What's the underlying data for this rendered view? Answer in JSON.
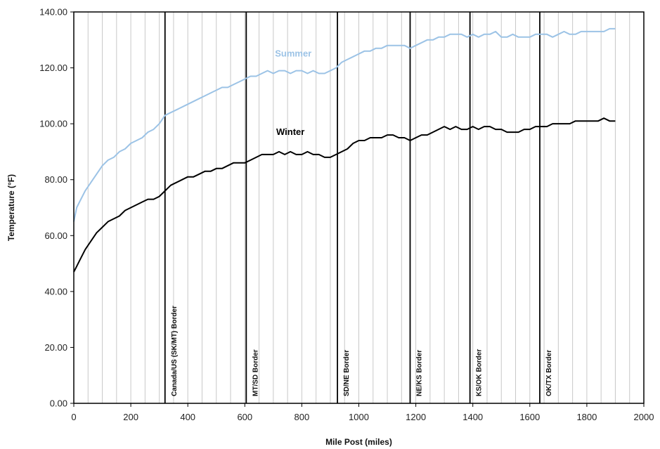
{
  "chart_data": {
    "type": "line",
    "title": "",
    "xlabel": "Mile Post (miles)",
    "ylabel": "Temperature (°F)",
    "xlim": [
      0,
      2000
    ],
    "ylim": [
      0,
      140
    ],
    "x_ticks": [
      "0",
      "200",
      "400",
      "600",
      "800",
      "1000",
      "1200",
      "1400",
      "1600",
      "1800",
      "2000"
    ],
    "y_ticks": [
      "0.00",
      "20.00",
      "40.00",
      "60.00",
      "80.00",
      "100.00",
      "120.00",
      "140.00"
    ],
    "grid": "vertical",
    "series": [
      {
        "name": "Summer",
        "color": "#9cc3e6",
        "x": [
          0,
          10,
          20,
          40,
          60,
          80,
          100,
          120,
          140,
          160,
          180,
          200,
          220,
          240,
          260,
          280,
          300,
          320,
          340,
          360,
          380,
          400,
          420,
          440,
          460,
          480,
          500,
          520,
          540,
          560,
          580,
          600,
          620,
          640,
          660,
          680,
          700,
          720,
          740,
          760,
          780,
          800,
          820,
          840,
          860,
          880,
          900,
          920,
          940,
          960,
          980,
          1000,
          1020,
          1040,
          1060,
          1080,
          1100,
          1120,
          1140,
          1160,
          1180,
          1200,
          1220,
          1240,
          1260,
          1280,
          1300,
          1320,
          1340,
          1360,
          1380,
          1400,
          1420,
          1440,
          1460,
          1480,
          1500,
          1520,
          1540,
          1560,
          1580,
          1600,
          1620,
          1640,
          1660,
          1680,
          1700,
          1720,
          1740,
          1760,
          1780,
          1800,
          1820,
          1840,
          1860,
          1880,
          1900
        ],
        "values": [
          65,
          70,
          72,
          76,
          79,
          82,
          85,
          87,
          88,
          90,
          91,
          93,
          94,
          95,
          97,
          98,
          100,
          103,
          104,
          105,
          106,
          107,
          108,
          109,
          110,
          111,
          112,
          113,
          113,
          114,
          115,
          116,
          117,
          117,
          118,
          119,
          118,
          119,
          119,
          118,
          119,
          119,
          118,
          119,
          118,
          118,
          119,
          120,
          122,
          123,
          124,
          125,
          126,
          126,
          127,
          127,
          128,
          128,
          128,
          128,
          127,
          128,
          129,
          130,
          130,
          131,
          131,
          132,
          132,
          132,
          131,
          132,
          131,
          132,
          132,
          133,
          131,
          131,
          132,
          131,
          131,
          131,
          132,
          132,
          132,
          131,
          132,
          133,
          132,
          132,
          133,
          133,
          133,
          133,
          133,
          134,
          134
        ]
      },
      {
        "name": "Winter",
        "color": "#000000",
        "x": [
          0,
          10,
          20,
          40,
          60,
          80,
          100,
          120,
          140,
          160,
          180,
          200,
          220,
          240,
          260,
          280,
          300,
          320,
          340,
          360,
          380,
          400,
          420,
          440,
          460,
          480,
          500,
          520,
          540,
          560,
          580,
          600,
          620,
          640,
          660,
          680,
          700,
          720,
          740,
          760,
          780,
          800,
          820,
          840,
          860,
          880,
          900,
          920,
          940,
          960,
          980,
          1000,
          1020,
          1040,
          1060,
          1080,
          1100,
          1120,
          1140,
          1160,
          1180,
          1200,
          1220,
          1240,
          1260,
          1280,
          1300,
          1320,
          1340,
          1360,
          1380,
          1400,
          1420,
          1440,
          1460,
          1480,
          1500,
          1520,
          1540,
          1560,
          1580,
          1600,
          1620,
          1640,
          1660,
          1680,
          1700,
          1720,
          1740,
          1760,
          1780,
          1800,
          1820,
          1840,
          1860,
          1880,
          1900
        ],
        "values": [
          47,
          49,
          51,
          55,
          58,
          61,
          63,
          65,
          66,
          67,
          69,
          70,
          71,
          72,
          73,
          73,
          74,
          76,
          78,
          79,
          80,
          81,
          81,
          82,
          83,
          83,
          84,
          84,
          85,
          86,
          86,
          86,
          87,
          88,
          89,
          89,
          89,
          90,
          89,
          90,
          89,
          89,
          90,
          89,
          89,
          88,
          88,
          89,
          90,
          91,
          93,
          94,
          94,
          95,
          95,
          95,
          96,
          96,
          95,
          95,
          94,
          95,
          96,
          96,
          97,
          98,
          99,
          98,
          99,
          98,
          98,
          99,
          98,
          99,
          99,
          98,
          98,
          97,
          97,
          97,
          98,
          98,
          99,
          99,
          99,
          100,
          100,
          100,
          100,
          101,
          101,
          101,
          101,
          101,
          102,
          101,
          101
        ]
      }
    ],
    "series_labels": [
      {
        "name": "Summer",
        "x": 770,
        "y": 124
      },
      {
        "name": "Winter",
        "x": 760,
        "y": 96
      }
    ],
    "annotations": [
      {
        "x": 320,
        "label": "Canada/US (SK/MT) Border"
      },
      {
        "x": 605,
        "label": "MT/SD Border"
      },
      {
        "x": 925,
        "label": "SD/NE Border"
      },
      {
        "x": 1180,
        "label": "NE/KS Border"
      },
      {
        "x": 1390,
        "label": "KS/OK Border"
      },
      {
        "x": 1635,
        "label": "OK/TX Border"
      }
    ]
  }
}
